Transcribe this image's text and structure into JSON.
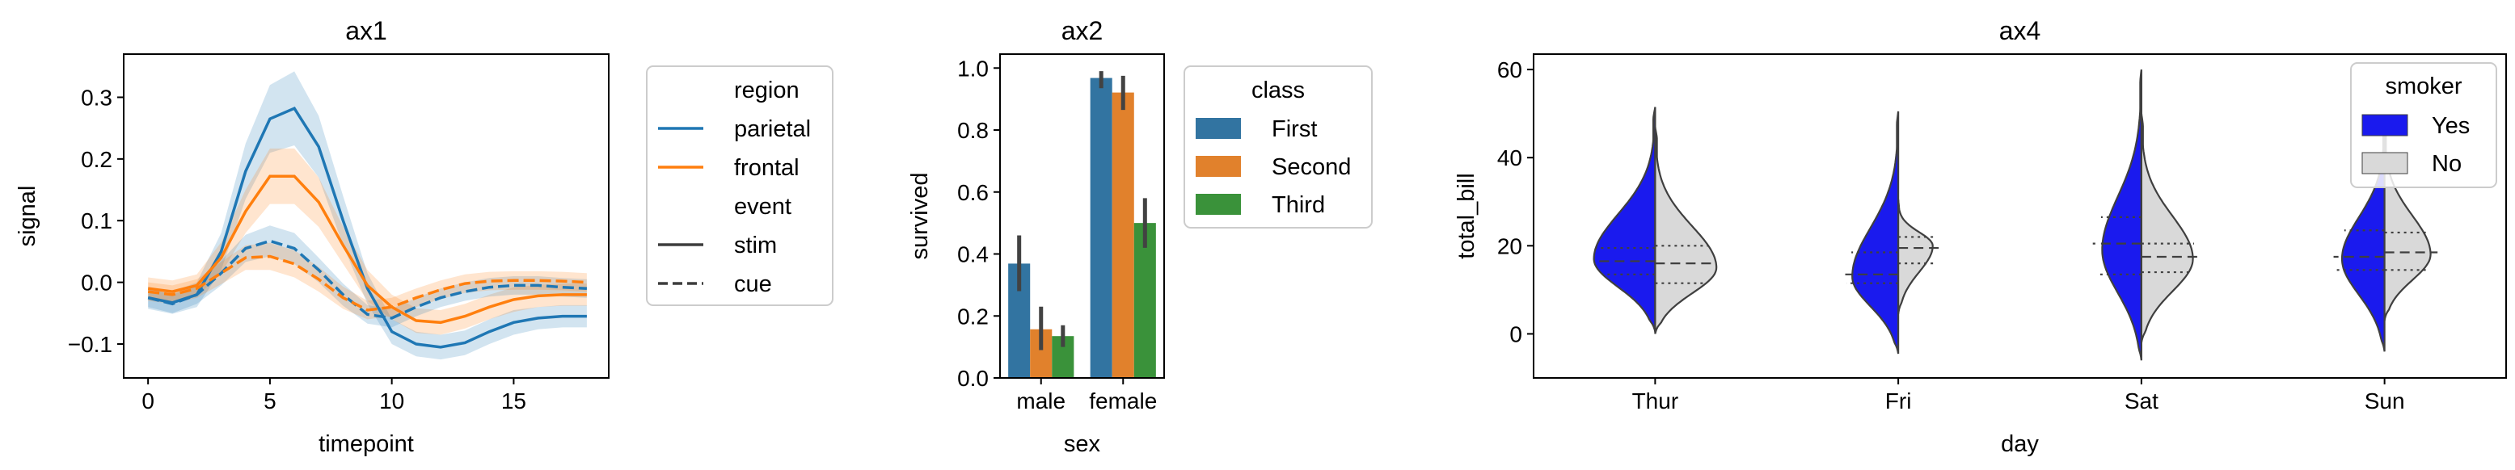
{
  "chart_data": [
    {
      "id": "ax1",
      "type": "line",
      "title": "ax1",
      "xlabel": "timepoint",
      "ylabel": "signal",
      "xlim": [
        -1,
        18.9
      ],
      "ylim": [
        -0.155,
        0.37
      ],
      "xticks": [
        0,
        5,
        10,
        15
      ],
      "yticks": [
        -0.1,
        0.0,
        0.1,
        0.2,
        0.3
      ],
      "ytick_labels": [
        "−0.1",
        "0.0",
        "0.1",
        "0.2",
        "0.3"
      ],
      "x": [
        0,
        1,
        2,
        3,
        4,
        5,
        6,
        7,
        8,
        9,
        10,
        11,
        12,
        13,
        14,
        15,
        16,
        17,
        18
      ],
      "legend": {
        "position": "outside-right",
        "hue_title": "region",
        "hue": [
          {
            "name": "parietal",
            "color": "#1f77b4"
          },
          {
            "name": "frontal",
            "color": "#ff7f0e"
          }
        ],
        "style_title": "event",
        "style": [
          {
            "name": "stim",
            "dash": "solid"
          },
          {
            "name": "cue",
            "dash": "dashed"
          }
        ]
      },
      "series": [
        {
          "region": "parietal",
          "event": "stim",
          "color": "#1f77b4",
          "dash": "solid",
          "values": [
            -0.025,
            -0.033,
            -0.02,
            0.05,
            0.18,
            0.265,
            0.282,
            0.22,
            0.1,
            -0.01,
            -0.08,
            -0.1,
            -0.105,
            -0.098,
            -0.08,
            -0.065,
            -0.058,
            -0.055,
            -0.055
          ],
          "ci": [
            0.018,
            0.018,
            0.02,
            0.03,
            0.045,
            0.055,
            0.06,
            0.05,
            0.04,
            0.025,
            0.02,
            0.02,
            0.02,
            0.02,
            0.02,
            0.02,
            0.018,
            0.018,
            0.018
          ]
        },
        {
          "region": "frontal",
          "event": "stim",
          "color": "#ff7f0e",
          "dash": "solid",
          "values": [
            -0.01,
            -0.015,
            -0.005,
            0.04,
            0.115,
            0.172,
            0.172,
            0.13,
            0.06,
            -0.005,
            -0.04,
            -0.062,
            -0.065,
            -0.055,
            -0.04,
            -0.028,
            -0.022,
            -0.02,
            -0.02
          ],
          "ci": [
            0.018,
            0.018,
            0.018,
            0.025,
            0.035,
            0.045,
            0.045,
            0.04,
            0.03,
            0.025,
            0.02,
            0.02,
            0.02,
            0.02,
            0.02,
            0.02,
            0.018,
            0.018,
            0.018
          ]
        },
        {
          "region": "parietal",
          "event": "cue",
          "color": "#1f77b4",
          "dash": "dashed",
          "values": [
            -0.025,
            -0.035,
            -0.02,
            0.015,
            0.055,
            0.067,
            0.055,
            0.02,
            -0.02,
            -0.052,
            -0.058,
            -0.04,
            -0.025,
            -0.015,
            -0.008,
            -0.005,
            -0.005,
            -0.008,
            -0.01
          ],
          "ci": [
            0.015,
            0.015,
            0.015,
            0.02,
            0.022,
            0.025,
            0.025,
            0.02,
            0.018,
            0.015,
            0.015,
            0.015,
            0.015,
            0.015,
            0.015,
            0.015,
            0.015,
            0.015,
            0.015
          ]
        },
        {
          "region": "frontal",
          "event": "cue",
          "color": "#ff7f0e",
          "dash": "dashed",
          "values": [
            -0.015,
            -0.02,
            -0.01,
            0.015,
            0.04,
            0.042,
            0.03,
            0.005,
            -0.025,
            -0.045,
            -0.04,
            -0.025,
            -0.012,
            -0.002,
            0.002,
            0.003,
            0.003,
            0.002,
            0.0
          ],
          "ci": [
            0.015,
            0.015,
            0.015,
            0.018,
            0.02,
            0.022,
            0.022,
            0.02,
            0.018,
            0.015,
            0.015,
            0.015,
            0.015,
            0.015,
            0.015,
            0.015,
            0.015,
            0.015,
            0.015
          ]
        }
      ]
    },
    {
      "id": "ax2",
      "type": "bar",
      "title": "ax2",
      "xlabel": "sex",
      "ylabel": "survived",
      "ylim": [
        0,
        1.045
      ],
      "yticks": [
        0.0,
        0.2,
        0.4,
        0.6,
        0.8,
        1.0
      ],
      "ytick_labels": [
        "0.0",
        "0.2",
        "0.4",
        "0.6",
        "0.8",
        "1.0"
      ],
      "categories": [
        "male",
        "female"
      ],
      "legend": {
        "title": "class",
        "position": "outside-right"
      },
      "series": [
        {
          "name": "First",
          "color": "#3274a1",
          "values": [
            0.369,
            0.968
          ],
          "ci": [
            [
              0.28,
              0.46
            ],
            [
              0.935,
              0.99
            ]
          ]
        },
        {
          "name": "Second",
          "color": "#e1812c",
          "values": [
            0.157,
            0.921
          ],
          "ci": [
            [
              0.09,
              0.23
            ],
            [
              0.865,
              0.975
            ]
          ]
        },
        {
          "name": "Third",
          "color": "#3a923a",
          "values": [
            0.135,
            0.5
          ],
          "ci": [
            [
              0.1,
              0.17
            ],
            [
              0.42,
              0.58
            ]
          ]
        }
      ]
    },
    {
      "id": "ax4",
      "type": "violin",
      "title": "ax4",
      "xlabel": "day",
      "ylabel": "total_bill",
      "ylim": [
        -10,
        63.5
      ],
      "yticks": [
        0,
        20,
        40,
        60
      ],
      "categories": [
        "Thur",
        "Fri",
        "Sat",
        "Sun"
      ],
      "split": true,
      "inner": "quartile",
      "legend": {
        "title": "smoker",
        "position": "top-right"
      },
      "series": [
        {
          "name": "Yes",
          "color": "#1a1aee",
          "groups": [
            {
              "min": 0.5,
              "max": 51.5,
              "q1": 13.5,
              "median": 16.5,
              "q3": 19.5,
              "peak": 17,
              "width": 0.6
            },
            {
              "min": -4.5,
              "max": 50.5,
              "q1": 11.5,
              "median": 13.5,
              "q3": 18.5,
              "peak": 13,
              "width": 0.52
            },
            {
              "min": -6,
              "max": 60,
              "q1": 13.5,
              "median": 20.5,
              "q3": 26.5,
              "peak": 19,
              "width": 0.48
            },
            {
              "min": -4,
              "max": 49,
              "q1": 14.5,
              "median": 17.5,
              "q3": 23.5,
              "peak": 17,
              "width": 0.5
            }
          ]
        },
        {
          "name": "No",
          "color": "#d9d9d9",
          "groups": [
            {
              "min": 0,
              "max": 47,
              "q1": 11.5,
              "median": 16,
              "q3": 20,
              "peak": 15,
              "width": 0.6
            },
            {
              "min": 4.5,
              "max": 30.5,
              "q1": 16,
              "median": 19.5,
              "q3": 22,
              "peak": 20,
              "width": 0.45
            },
            {
              "min": -2,
              "max": 50,
              "q1": 14,
              "median": 17.5,
              "q3": 20.5,
              "peak": 17,
              "width": 0.55
            },
            {
              "min": 3,
              "max": 48,
              "q1": 14.5,
              "median": 18.5,
              "q3": 23,
              "peak": 18,
              "width": 0.52
            }
          ]
        }
      ]
    }
  ]
}
